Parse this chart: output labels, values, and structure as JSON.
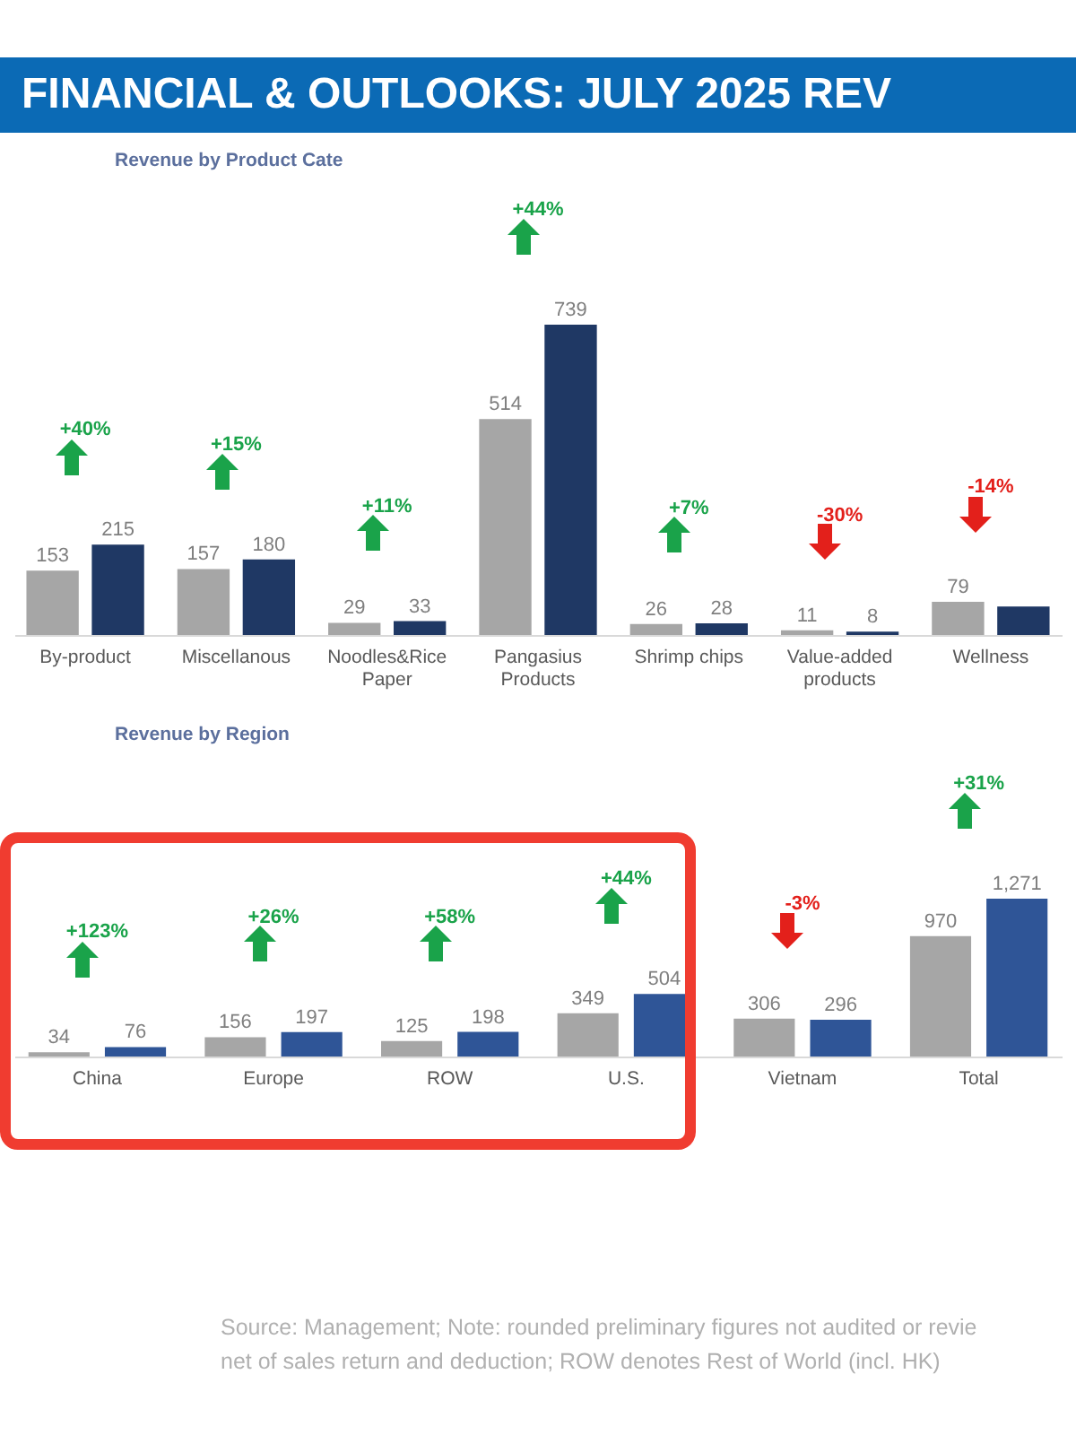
{
  "chart_data": [
    {
      "type": "bar",
      "title": "FINANCIAL & OUTLOOKS: JULY 2025 REV",
      "subtitle": "Revenue by Product Cate",
      "categories": [
        "By-product",
        "Miscellanous",
        "Noodles&Rice Paper",
        "Pangasius Products",
        "Shrimp chips",
        "Value-added products",
        "Wellness"
      ],
      "series": [
        {
          "color": "#a6a6a6",
          "values": [
            153,
            157,
            29,
            514,
            26,
            11,
            79
          ],
          "value_labels": [
            "153",
            "157",
            "29",
            "514",
            "26",
            "11",
            "79"
          ]
        },
        {
          "color": "#1f3864",
          "values": [
            215,
            180,
            33,
            739,
            28,
            8,
            68
          ],
          "value_labels": [
            "215",
            "180",
            "33",
            "739",
            "28",
            "8",
            null
          ]
        }
      ],
      "annotations": [
        "+40%",
        "+15%",
        "+11%",
        "+44%",
        "+7%",
        "-30%",
        "-14%"
      ]
    },
    {
      "type": "bar",
      "title": "Revenue by Region",
      "categories": [
        "China",
        "Europe",
        "ROW",
        "U.S.",
        "Vietnam",
        "Total"
      ],
      "series": [
        {
          "color": "#a6a6a6",
          "values": [
            34,
            156,
            125,
            349,
            306,
            970
          ],
          "value_labels": [
            "34",
            "156",
            "125",
            "349",
            "306",
            "970"
          ]
        },
        {
          "color": "#2f5597",
          "values": [
            76,
            197,
            198,
            504,
            296,
            1271
          ],
          "value_labels": [
            "76",
            "197",
            "198",
            "504",
            "296",
            "1,271"
          ]
        }
      ],
      "annotations": [
        "+123%",
        "+26%",
        "+58%",
        "+44%",
        "-3%",
        "+31%",
        "Source: Management; Note: rounded preliminary figures not audited or revie",
        "net of sales return and deduction; ROW denotes Rest of World (incl. HK)"
      ]
    }
  ]
}
